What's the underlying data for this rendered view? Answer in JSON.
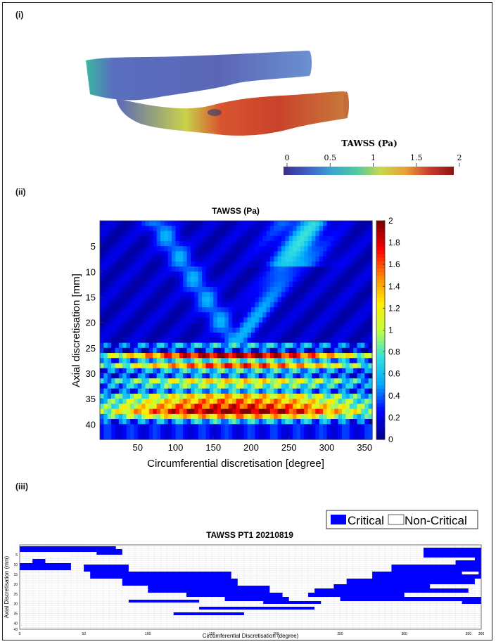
{
  "panels": [
    {
      "label": "(i)"
    },
    {
      "label": "(ii)"
    },
    {
      "label": "(iii)"
    }
  ],
  "colors": {
    "critical": "#0000ff",
    "non_critical": "#ffffff",
    "colormap": [
      "#00008f",
      "#0000ff",
      "#00aaff",
      "#33e0e0",
      "#c0ff40",
      "#ffee00",
      "#ff8800",
      "#ff0000",
      "#800000"
    ]
  },
  "chart_data": [
    {
      "type": "surface-model",
      "title": "TAWSS (Pa)",
      "colorbar": {
        "ticks": [
          "0",
          "0.5",
          "1",
          "1.5",
          "2"
        ],
        "range": [
          0,
          2
        ]
      }
    },
    {
      "type": "heatmap",
      "title": "TAWSS (Pa)",
      "xlabel": "Circumferential discretisation [degree]",
      "ylabel": "Axial discretisation [mm]",
      "xlim": [
        0,
        360
      ],
      "ylim": [
        0,
        43
      ],
      "xticks": [
        "50",
        "100",
        "150",
        "200",
        "250",
        "300",
        "350"
      ],
      "yticks": [
        "5",
        "10",
        "15",
        "20",
        "25",
        "30",
        "35",
        "40"
      ],
      "colorbar": {
        "range": [
          0,
          2
        ],
        "ticks": [
          "0",
          "0.2",
          "0.4",
          "0.6",
          "0.8",
          "1",
          "1.2",
          "1.4",
          "1.6",
          "1.8",
          "2"
        ]
      }
    },
    {
      "type": "heatmap",
      "title": "TAWSS PT1 20210819",
      "xlabel": "Circumferential Discretisation (degree)",
      "ylabel": "Axial Discretisation (mm)",
      "xlim": [
        0,
        360
      ],
      "ylim": [
        0,
        43
      ],
      "xticks": [
        "0",
        "50",
        "100",
        "150",
        "200",
        "250",
        "300",
        "350",
        "360"
      ],
      "yticks": [
        "5",
        "10",
        "15",
        "20",
        "25",
        "30",
        "35",
        "40",
        "43"
      ],
      "legend": [
        "Critical",
        "Non-Critical"
      ],
      "legend_position": "top-right"
    }
  ]
}
